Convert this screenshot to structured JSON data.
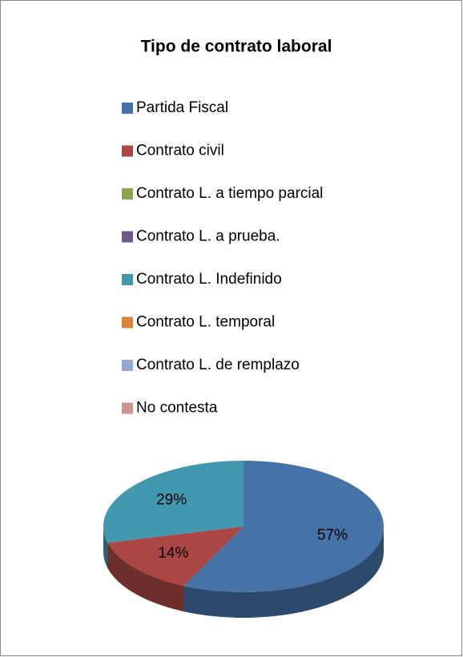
{
  "chart_data": {
    "type": "pie",
    "title": "Tipo de contrato laboral",
    "categories": [
      "Partida Fiscal",
      "Contrato civil",
      "Contrato L. a tiempo parcial",
      "Contrato L. a prueba.",
      "Contrato L. Indefinido",
      "Contrato L. temporal",
      "Contrato L. de remplazo",
      "No contesta"
    ],
    "values": [
      57,
      14,
      0,
      0,
      29,
      0,
      0,
      0
    ],
    "value_labels": [
      "57%",
      "14%",
      null,
      null,
      "29%",
      null,
      null,
      null
    ],
    "colors": [
      "#4572a7",
      "#aa4643",
      "#89a54e",
      "#71588f",
      "#4198af",
      "#db843d",
      "#93a9cf",
      "#d19392"
    ],
    "legend": "top"
  }
}
